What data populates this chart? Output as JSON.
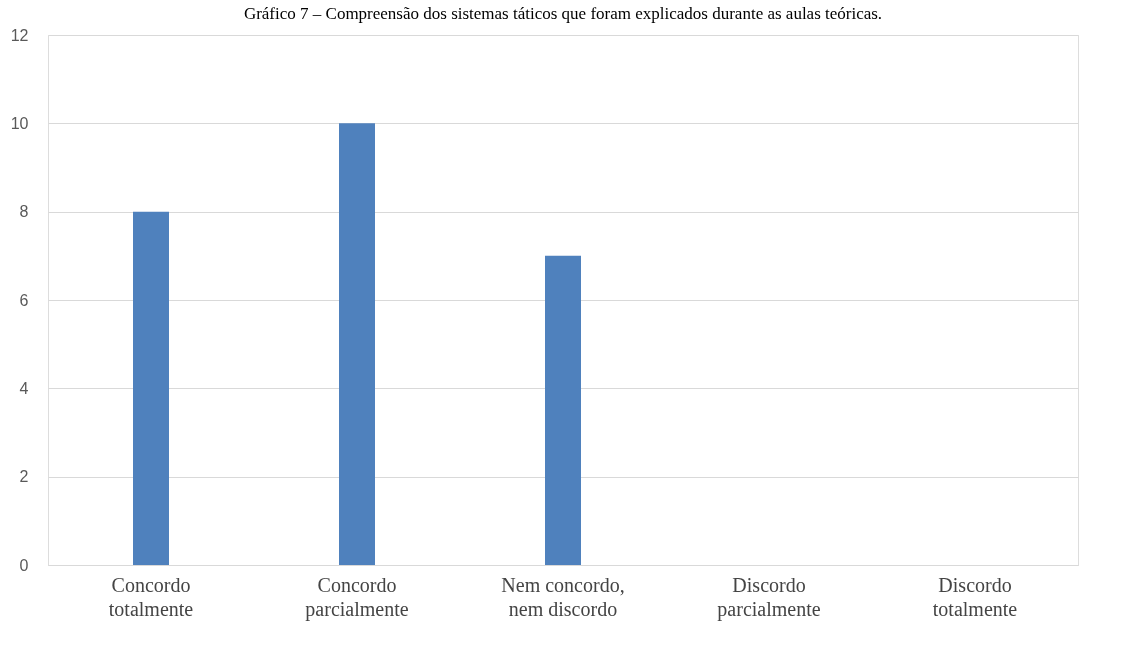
{
  "chart_data": {
    "type": "bar",
    "title": "Gráfico 7 – Compreensão dos sistemas táticos que foram explicados durante as aulas teóricas.",
    "categories": [
      "Concordo\ntotalmente",
      "Concordo\nparcialmente",
      "Nem concordo,\nnem discordo",
      "Discordo\nparcialmente",
      "Discordo\ntotalmente"
    ],
    "values": [
      8,
      10,
      7,
      0,
      0
    ],
    "color": "#4f81bd",
    "ylim": [
      0,
      12
    ],
    "yticks": [
      0,
      2,
      4,
      6,
      8,
      10,
      12
    ],
    "grid": "y"
  }
}
